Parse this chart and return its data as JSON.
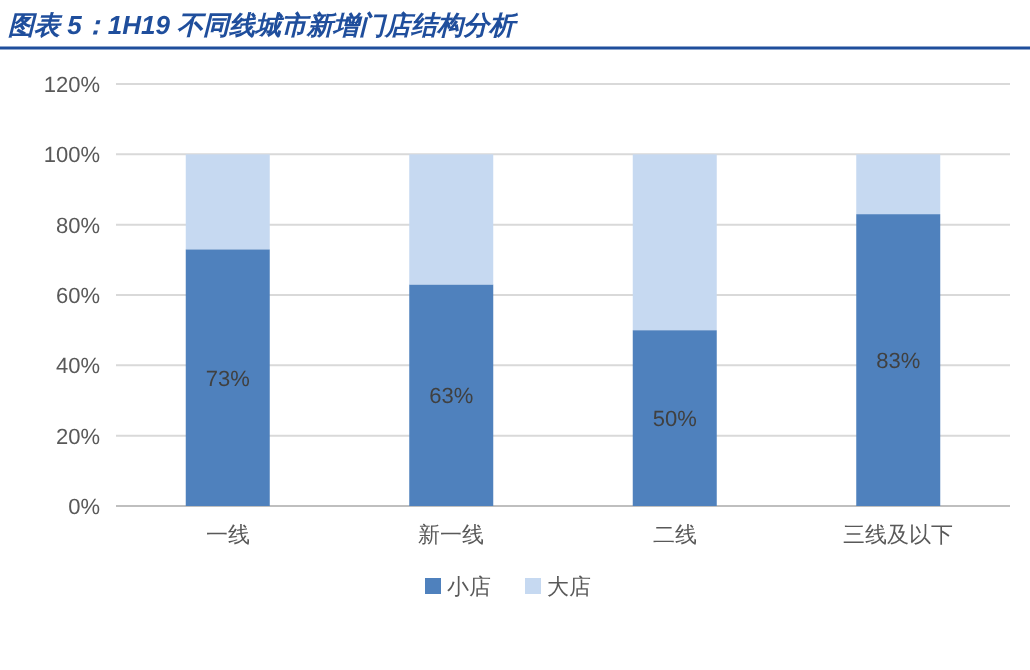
{
  "chart_data": {
    "type": "bar",
    "title": "图表 5：1H19 不同线城市新增门店结构分析",
    "categories": [
      "一线",
      "新一线",
      "二线",
      "三线及以下"
    ],
    "stacked": true,
    "series": [
      {
        "name": "小店",
        "color": "#4f81bd",
        "values": [
          73,
          63,
          50,
          83
        ],
        "value_labels": [
          "73%",
          "63%",
          "50%",
          "83%"
        ]
      },
      {
        "name": "大店",
        "color": "#c6d9f1",
        "values": [
          27,
          37,
          50,
          17
        ]
      }
    ],
    "ylim": [
      0,
      120
    ],
    "yticks": [
      {
        "value": 0,
        "label": "0%"
      },
      {
        "value": 20,
        "label": "20%"
      },
      {
        "value": 40,
        "label": "40%"
      },
      {
        "value": 60,
        "label": "60%"
      },
      {
        "value": 80,
        "label": "80%"
      },
      {
        "value": 100,
        "label": "100%"
      },
      {
        "value": 120,
        "label": "120%"
      }
    ],
    "grid": "y",
    "legend": "bottom"
  }
}
